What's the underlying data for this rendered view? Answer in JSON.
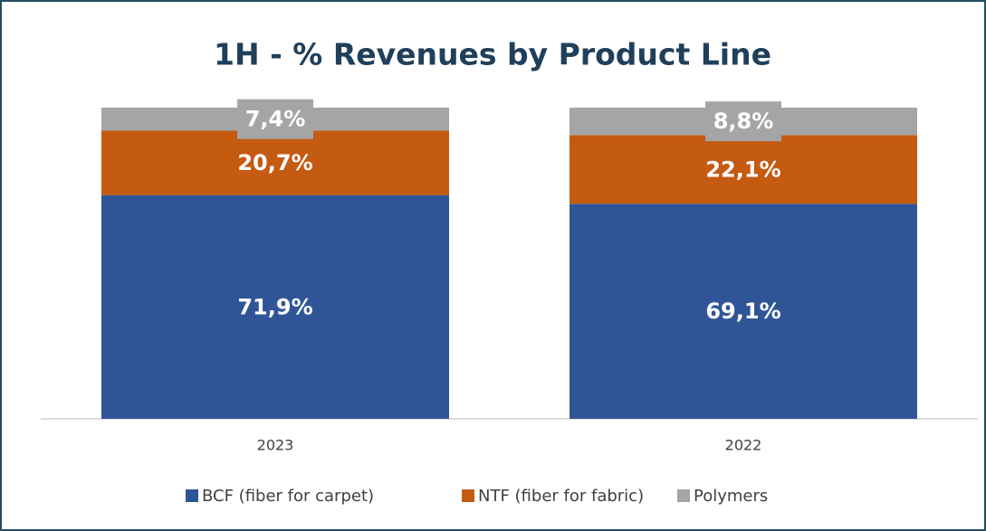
{
  "chart_data": {
    "type": "stacked_bar",
    "title": "1H - % Revenues by Product Line",
    "categories": [
      "2023",
      "2022"
    ],
    "series": [
      {
        "name": "BCF (fiber for carpet)",
        "color": "#2f5597",
        "values": [
          71.9,
          69.1
        ],
        "value_labels": [
          "71,9%",
          "69,1%"
        ]
      },
      {
        "name": "NTF (fiber for fabric)",
        "color": "#c55a11",
        "values": [
          20.7,
          22.1
        ],
        "value_labels": [
          "20,7%",
          "22,1%"
        ]
      },
      {
        "name": "Polymers",
        "color": "#a5a5a5",
        "values": [
          7.4,
          8.8
        ],
        "value_labels": [
          "7,4%",
          "8,8%"
        ]
      }
    ],
    "ylim": [
      0,
      100
    ],
    "legend": "bottom"
  }
}
